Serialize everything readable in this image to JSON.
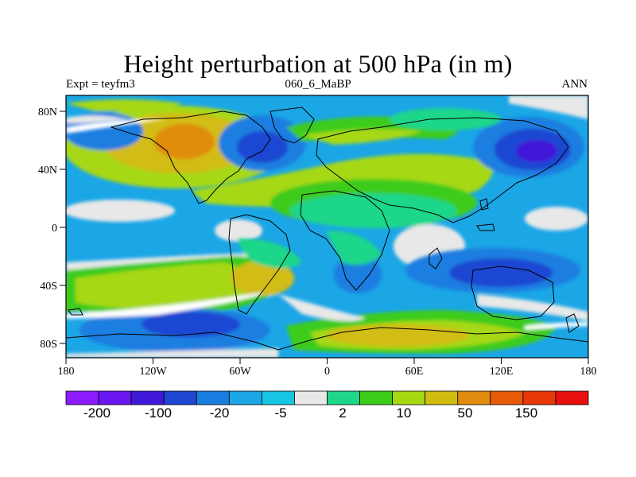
{
  "figure": {
    "title": "Height perturbation at 500 hPa (in m)",
    "left_string": "Expt = teyfm3",
    "center_string": "060_6_MaBP",
    "right_string": "ANN"
  },
  "axes": {
    "x_ticks": [
      "180",
      "120W",
      "60W",
      "0",
      "60E",
      "120E",
      "180"
    ],
    "y_ticks": [
      "80N",
      "40N",
      "0",
      "40S",
      "80S"
    ]
  },
  "colorbar": {
    "colors": [
      "#8c1bff",
      "#6a16f0",
      "#4018d8",
      "#1e46d2",
      "#1a7ee0",
      "#1ba6e6",
      "#17c4e2",
      "#e8e8e8",
      "#1ed68a",
      "#3ccc1a",
      "#a6d812",
      "#d2bc12",
      "#e08c0e",
      "#e65a0a",
      "#e8380a",
      "#e80f0f"
    ],
    "labels": [
      "-200",
      "-100",
      "-20",
      "-5",
      "2",
      "10",
      "50",
      "150"
    ]
  },
  "palette": {
    "background_field": "#1ba6e6",
    "neutral": "#e8e8e8",
    "coast": "#000000"
  }
}
